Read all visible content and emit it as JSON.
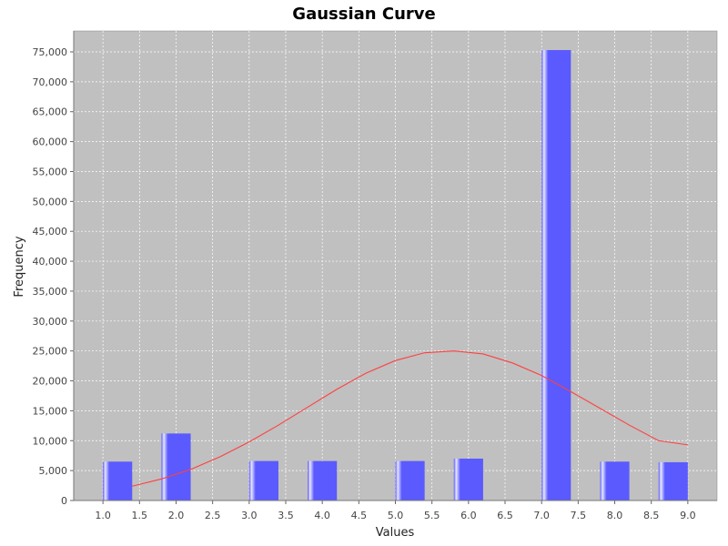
{
  "chart_data": {
    "type": "bar",
    "title": "Gaussian Curve",
    "xlabel": "Values",
    "ylabel": "Frequency",
    "xlim": [
      0.6,
      9.4
    ],
    "ylim": [
      0,
      78500
    ],
    "x_ticks": [
      "1.0",
      "1.5",
      "2.0",
      "2.5",
      "3.0",
      "3.5",
      "4.0",
      "4.5",
      "5.0",
      "5.5",
      "6.0",
      "6.5",
      "7.0",
      "7.5",
      "8.0",
      "8.5",
      "9.0"
    ],
    "y_ticks": [
      "0",
      "5,000",
      "10,000",
      "15,000",
      "20,000",
      "25,000",
      "30,000",
      "35,000",
      "40,000",
      "45,000",
      "50,000",
      "55,000",
      "60,000",
      "65,000",
      "70,000",
      "75,000"
    ],
    "grid": true,
    "legend": "none",
    "series": [
      {
        "kind": "bar",
        "x_start": [
          1.0,
          1.8,
          3.0,
          3.8,
          5.0,
          5.8,
          7.0,
          7.8,
          8.6
        ],
        "x_end": [
          1.4,
          2.2,
          3.4,
          4.2,
          5.4,
          6.2,
          7.4,
          8.2,
          9.0
        ],
        "values": [
          6500,
          11200,
          6600,
          6600,
          6600,
          7000,
          75300,
          6500,
          6400
        ]
      },
      {
        "kind": "line",
        "x": [
          1.4,
          1.8,
          2.2,
          2.6,
          3.0,
          3.4,
          3.8,
          4.2,
          4.6,
          5.0,
          5.4,
          5.8,
          6.2,
          6.6,
          7.0,
          7.4,
          7.8,
          8.2,
          8.6,
          9.0
        ],
        "values": [
          2400,
          3600,
          5200,
          7300,
          9800,
          12600,
          15600,
          18600,
          21300,
          23400,
          24700,
          25000,
          24500,
          23000,
          20900,
          18200,
          15400,
          12600,
          10000,
          9300
        ]
      }
    ],
    "colors": {
      "plot_background": "#c0c0c0",
      "bar_fill": "#5a5aff",
      "bar_highlight": "#e8e8ff",
      "curve": "#ff4040",
      "gridline": "#ffffff"
    }
  }
}
